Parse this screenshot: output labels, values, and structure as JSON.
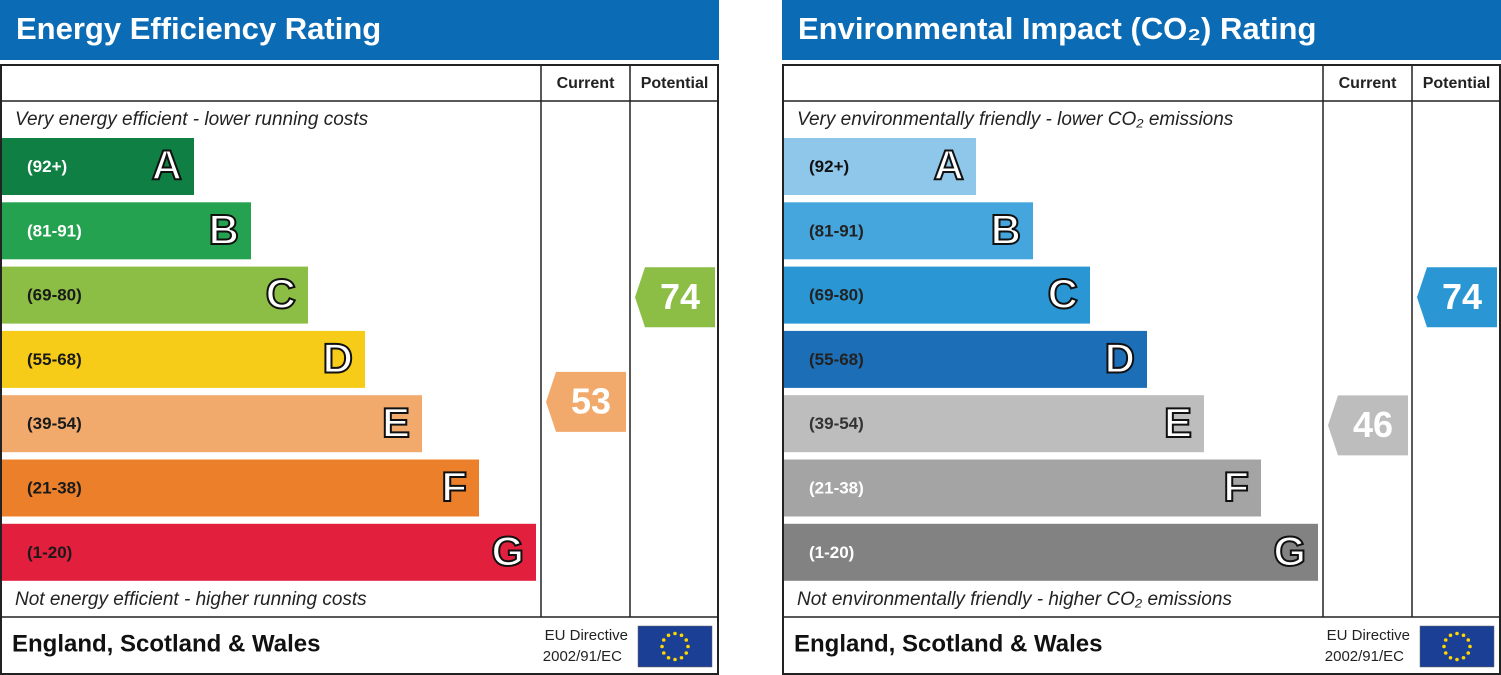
{
  "panels": [
    {
      "title": "Energy Efficiency Rating",
      "columns": [
        "Current",
        "Potential"
      ],
      "top_note": "Very energy efficient - lower running costs",
      "bottom_note": "Not energy efficient - higher running costs",
      "bands": [
        {
          "range": "(92+)",
          "letter": "A",
          "color": "#0f7f43",
          "text_color": "#ffffff"
        },
        {
          "range": "(81-91)",
          "letter": "B",
          "color": "#24a24f",
          "text_color": "#ffffff"
        },
        {
          "range": "(69-80)",
          "letter": "C",
          "color": "#8cbd45",
          "text_color": "#1a1a1a"
        },
        {
          "range": "(55-68)",
          "letter": "D",
          "color": "#f6cc18",
          "text_color": "#1a1a1a"
        },
        {
          "range": "(39-54)",
          "letter": "E",
          "color": "#f1aa6c",
          "text_color": "#1a1a1a"
        },
        {
          "range": "(21-38)",
          "letter": "F",
          "color": "#ec7f2a",
          "text_color": "#1a1a1a"
        },
        {
          "range": "(1-20)",
          "letter": "G",
          "color": "#e21f3d",
          "text_color": "#1a1a1a"
        }
      ],
      "current": 53,
      "potential": 74,
      "footer": {
        "region": "England, Scotland & Wales",
        "directive": [
          "EU Directive",
          "2002/91/EC"
        ]
      }
    },
    {
      "title": "Environmental Impact (CO₂) Rating",
      "columns": [
        "Current",
        "Potential"
      ],
      "top_note": "Very environmentally friendly - lower CO₂ emissions",
      "bottom_note": "Not environmentally friendly - higher CO₂ emissions",
      "bands": [
        {
          "range": "(92+)",
          "letter": "A",
          "color": "#8ec7ea",
          "text_color": "#111111"
        },
        {
          "range": "(81-91)",
          "letter": "B",
          "color": "#45a6de",
          "text_color": "#222222"
        },
        {
          "range": "(69-80)",
          "letter": "C",
          "color": "#2a97d4",
          "text_color": "#222222"
        },
        {
          "range": "(55-68)",
          "letter": "D",
          "color": "#1c6fb6",
          "text_color": "#222222"
        },
        {
          "range": "(39-54)",
          "letter": "E",
          "color": "#bdbdbd",
          "text_color": "#333333"
        },
        {
          "range": "(21-38)",
          "letter": "F",
          "color": "#a4a4a4",
          "text_color": "#ffffff"
        },
        {
          "range": "(1-20)",
          "letter": "G",
          "color": "#828282",
          "text_color": "#ffffff"
        }
      ],
      "current": 46,
      "potential": 74,
      "footer": {
        "region": "England, Scotland & Wales",
        "directive": [
          "EU Directive",
          "2002/91/EC"
        ]
      }
    }
  ]
}
